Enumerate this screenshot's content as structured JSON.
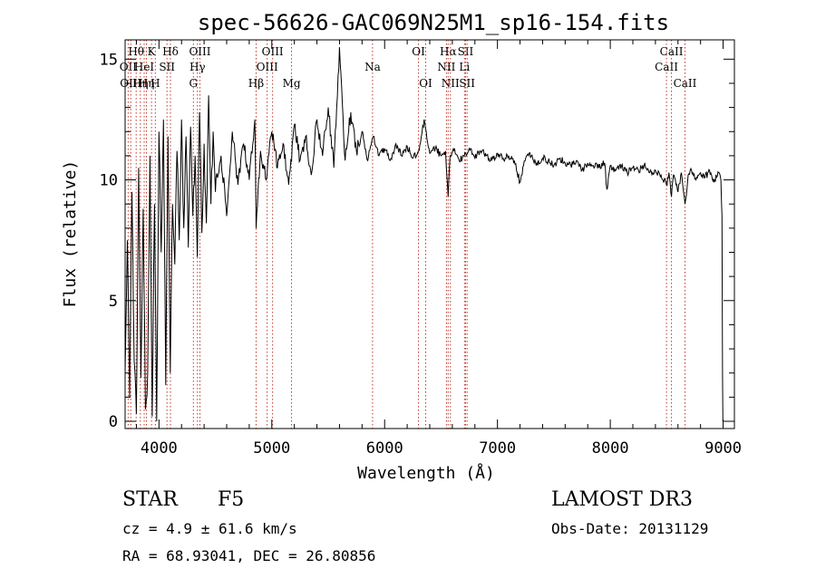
{
  "chart_data": {
    "type": "line",
    "title": "spec-56626-GAC069N25M1_sp16-154.fits",
    "xlabel": "Wavelength (Å)",
    "ylabel": "Flux (relative)",
    "xlim": [
      3700,
      9100
    ],
    "ylim": [
      -0.3,
      15.8
    ],
    "xticks": [
      4000,
      5000,
      6000,
      7000,
      8000,
      9000
    ],
    "yticks": [
      0,
      5,
      10,
      15
    ],
    "grid": false,
    "series": [
      {
        "name": "flux",
        "x": [
          3700,
          3720,
          3740,
          3760,
          3780,
          3800,
          3820,
          3840,
          3860,
          3880,
          3900,
          3920,
          3940,
          3960,
          3980,
          4000,
          4020,
          4040,
          4060,
          4080,
          4100,
          4120,
          4140,
          4160,
          4180,
          4200,
          4220,
          4240,
          4260,
          4280,
          4300,
          4320,
          4340,
          4360,
          4380,
          4400,
          4420,
          4440,
          4460,
          4480,
          4500,
          4550,
          4600,
          4650,
          4700,
          4750,
          4800,
          4850,
          4861,
          4900,
          4950,
          5000,
          5050,
          5100,
          5150,
          5200,
          5250,
          5300,
          5350,
          5400,
          5450,
          5500,
          5550,
          5600,
          5650,
          5700,
          5750,
          5800,
          5850,
          5900,
          5950,
          6000,
          6050,
          6100,
          6150,
          6200,
          6250,
          6300,
          6350,
          6400,
          6450,
          6500,
          6540,
          6563,
          6580,
          6620,
          6660,
          6700,
          6750,
          6800,
          6850,
          6900,
          6950,
          7000,
          7050,
          7100,
          7150,
          7200,
          7250,
          7300,
          7350,
          7400,
          7450,
          7500,
          7550,
          7600,
          7650,
          7700,
          7750,
          7800,
          7850,
          7900,
          7950,
          7970,
          8000,
          8050,
          8100,
          8150,
          8200,
          8250,
          8300,
          8350,
          8400,
          8450,
          8498,
          8520,
          8542,
          8560,
          8600,
          8630,
          8662,
          8690,
          8720,
          8760,
          8800,
          8840,
          8880,
          8920,
          8960,
          8980,
          8990,
          8995,
          8998
        ],
        "values": [
          2.0,
          7.5,
          1.0,
          9.5,
          2.5,
          0.3,
          10.5,
          1.8,
          8.8,
          0.5,
          2.0,
          11.0,
          0.2,
          9.0,
          0.0,
          12.0,
          7.0,
          12.5,
          1.5,
          11.8,
          2.0,
          9.0,
          6.5,
          11.2,
          7.5,
          12.5,
          8.0,
          11.8,
          7.2,
          12.2,
          8.5,
          11.0,
          6.8,
          12.8,
          7.8,
          11.5,
          8.2,
          13.5,
          9.0,
          12.0,
          9.5,
          11.0,
          8.5,
          12.0,
          9.8,
          11.5,
          10.0,
          12.5,
          8.0,
          11.2,
          10.0,
          12.0,
          10.5,
          11.5,
          9.8,
          12.3,
          10.8,
          11.8,
          10.2,
          12.5,
          11.0,
          13.0,
          10.5,
          15.5,
          10.8,
          12.8,
          11.2,
          12.0,
          10.8,
          11.8,
          11.0,
          11.3,
          10.8,
          11.5,
          11.0,
          11.4,
          10.9,
          11.2,
          12.5,
          11.1,
          11.3,
          11.0,
          11.2,
          9.3,
          11.0,
          11.3,
          10.8,
          11.0,
          11.3,
          10.9,
          11.2,
          11.0,
          10.8,
          11.1,
          10.9,
          11.0,
          10.8,
          9.9,
          10.9,
          11.0,
          10.7,
          10.9,
          10.8,
          10.6,
          10.9,
          10.7,
          10.6,
          10.8,
          10.4,
          10.7,
          10.6,
          10.5,
          10.7,
          9.6,
          10.6,
          10.4,
          10.6,
          10.3,
          10.5,
          10.4,
          10.6,
          10.3,
          10.4,
          10.2,
          9.8,
          10.3,
          9.3,
          10.2,
          9.5,
          10.3,
          9.0,
          10.2,
          10.4,
          10.0,
          10.3,
          10.1,
          10.4,
          9.9,
          10.3,
          10.0,
          8.5,
          2.0,
          0.0
        ]
      }
    ],
    "lines": [
      {
        "x": 3727,
        "label": "OII",
        "row": 1
      },
      {
        "x": 3750,
        "label": "OIII",
        "row": 2
      },
      {
        "x": 3798,
        "label": "Hθ",
        "row": 0
      },
      {
        "x": 3835,
        "label": "Hη",
        "row": 2
      },
      {
        "x": 3869,
        "label": "HeI",
        "row": 1
      },
      {
        "x": 3889,
        "label": "Hη",
        "row": 2
      },
      {
        "x": 3934,
        "label": "K",
        "row": 0
      },
      {
        "x": 3968,
        "label": "H",
        "row": 2
      },
      {
        "x": 4071,
        "label": "SII",
        "row": 1
      },
      {
        "x": 4102,
        "label": "Hδ",
        "row": 0
      },
      {
        "x": 4305,
        "label": "G",
        "row": 2
      },
      {
        "x": 4341,
        "label": "Hγ",
        "row": 1
      },
      {
        "x": 4363,
        "label": "OIII",
        "row": 0
      },
      {
        "x": 4861,
        "label": "Hβ",
        "row": 2
      },
      {
        "x": 4959,
        "label": "OIII",
        "row": 1
      },
      {
        "x": 5007,
        "label": "OIII",
        "row": 0
      },
      {
        "x": 5175,
        "label": "Mg",
        "row": 2
      },
      {
        "x": 5893,
        "label": "Na",
        "row": 1
      },
      {
        "x": 6300,
        "label": "OI",
        "row": 0
      },
      {
        "x": 6364,
        "label": "OI",
        "row": 2
      },
      {
        "x": 6548,
        "label": "NII",
        "row": 1
      },
      {
        "x": 6563,
        "label": "Hα",
        "row": 0
      },
      {
        "x": 6583,
        "label": "NII",
        "row": 2
      },
      {
        "x": 6708,
        "label": "Li",
        "row": 1
      },
      {
        "x": 6717,
        "label": "SII",
        "row": 0
      },
      {
        "x": 6731,
        "label": "SII",
        "row": 2
      },
      {
        "x": 8498,
        "label": "CaII",
        "row": 1
      },
      {
        "x": 8542,
        "label": "CaII",
        "row": 0
      },
      {
        "x": 8662,
        "label": "CaII",
        "row": 2
      }
    ]
  },
  "info": {
    "class": "STAR",
    "subclass": "F5",
    "survey": "LAMOST DR3",
    "cz": "cz = 4.9 ± 61.6 km/s",
    "obs_date": "Obs-Date: 20131129",
    "coords": "RA =  68.93041, DEC =  26.80856"
  }
}
